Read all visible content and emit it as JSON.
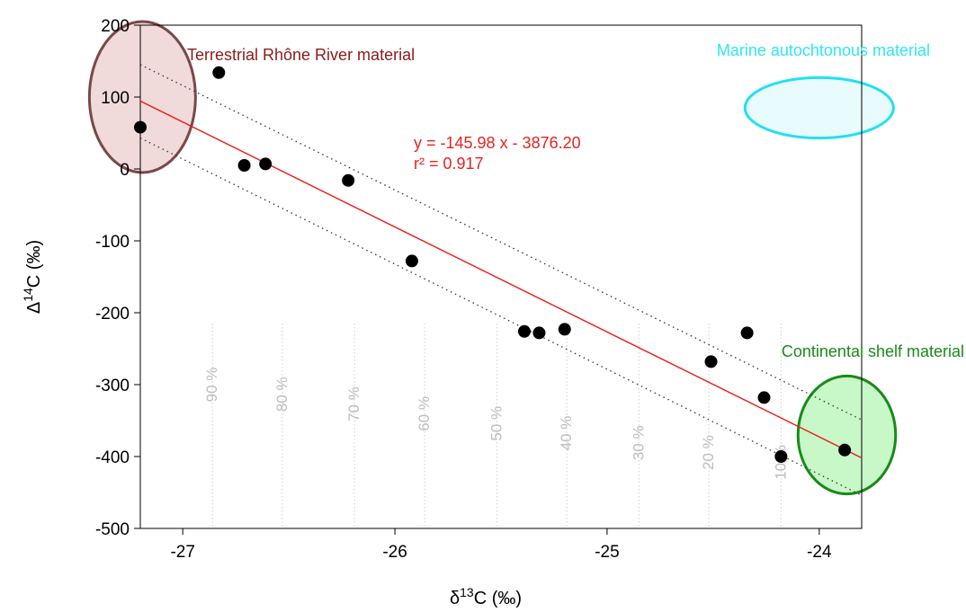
{
  "chart_data": {
    "type": "scatter",
    "title": "",
    "xlabel": {
      "base": "δ",
      "sup": "13",
      "rest": "C (‰)"
    },
    "ylabel": {
      "base": "Δ",
      "sup": "14",
      "rest": "C (‰)"
    },
    "xlim": [
      -27.2,
      -23.8
    ],
    "ylim": [
      -500,
      200
    ],
    "xticks": [
      -27,
      -26,
      -25,
      -24
    ],
    "yticks": [
      -500,
      -400,
      -300,
      -200,
      -100,
      0,
      100,
      200
    ],
    "grid": false,
    "points": [
      {
        "x": -27.2,
        "y": 58
      },
      {
        "x": -26.83,
        "y": 134
      },
      {
        "x": -26.71,
        "y": 5
      },
      {
        "x": -26.61,
        "y": 7
      },
      {
        "x": -26.22,
        "y": -16
      },
      {
        "x": -25.92,
        "y": -128
      },
      {
        "x": -25.39,
        "y": -226
      },
      {
        "x": -25.32,
        "y": -228
      },
      {
        "x": -25.2,
        "y": -223
      },
      {
        "x": -24.51,
        "y": -268
      },
      {
        "x": -24.34,
        "y": -228
      },
      {
        "x": -24.26,
        "y": -318
      },
      {
        "x": -24.18,
        "y": -400
      },
      {
        "x": -23.88,
        "y": -391
      }
    ],
    "regression": {
      "slope": -145.98,
      "intercept": -3876.2,
      "x_range": [
        -27.2,
        -23.8
      ],
      "equation_label": "y = -145.98 x - 3876.20",
      "r2_label": "r² = 0.917",
      "color": "#e8231f"
    },
    "confidence_band": {
      "upper": [
        [
          -27.2,
          145
        ],
        [
          -23.8,
          -349
        ]
      ],
      "lower": [
        [
          -27.2,
          43
        ],
        [
          -23.8,
          -454
        ]
      ]
    },
    "mixing_lines": [
      {
        "label": "90 %",
        "x": -26.86
      },
      {
        "label": "80 %",
        "x": -26.53
      },
      {
        "label": "70 %",
        "x": -26.19
      },
      {
        "label": "60 %",
        "x": -25.86
      },
      {
        "label": "50 %",
        "x": -25.52
      },
      {
        "label": "40 %",
        "x": -25.19
      },
      {
        "label": "30 %",
        "x": -24.85
      },
      {
        "label": "20 %",
        "x": -24.52
      },
      {
        "label": "10 %",
        "x": -24.18
      }
    ],
    "end_members": [
      {
        "label": "Terrestrial Rhône River material",
        "cx": -27.19,
        "cy": 100,
        "rx": 0.25,
        "ry": 105,
        "stroke": "#7a4848",
        "fill": "#f0dada",
        "label_color": "#8b1a1a"
      },
      {
        "label": "Marine autochtonous material",
        "cx": -24.0,
        "cy": 85,
        "rx": 0.35,
        "ry": 42,
        "stroke": "#22e0f0",
        "fill": "#e8fbfd",
        "label_color": "#2ee6f4"
      },
      {
        "label": "Continental shelf material",
        "cx": -23.87,
        "cy": -370,
        "rx": 0.23,
        "ry": 82,
        "stroke": "#1a8a1a",
        "fill": "#c8f7c8",
        "label_color": "#1a8a1a"
      }
    ]
  }
}
